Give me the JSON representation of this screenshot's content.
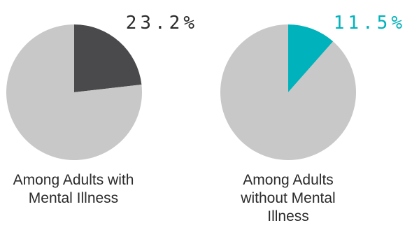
{
  "chart_data": [
    {
      "type": "pie",
      "caption": "Among Adults with\nMental Illness",
      "value_label": "23.2%",
      "slices": [
        {
          "value": 23.2,
          "color": "#4a4a4c"
        },
        {
          "value": 76.8,
          "color": "#c8c8c8"
        }
      ],
      "label_color": "#2b2b2b"
    },
    {
      "type": "pie",
      "caption": "Among Adults\nwithout Mental\nIllness",
      "value_label": "11.5%",
      "slices": [
        {
          "value": 11.5,
          "color": "#00b2bb"
        },
        {
          "value": 88.5,
          "color": "#c8c8c8"
        }
      ],
      "label_color": "#00b2bb"
    }
  ]
}
